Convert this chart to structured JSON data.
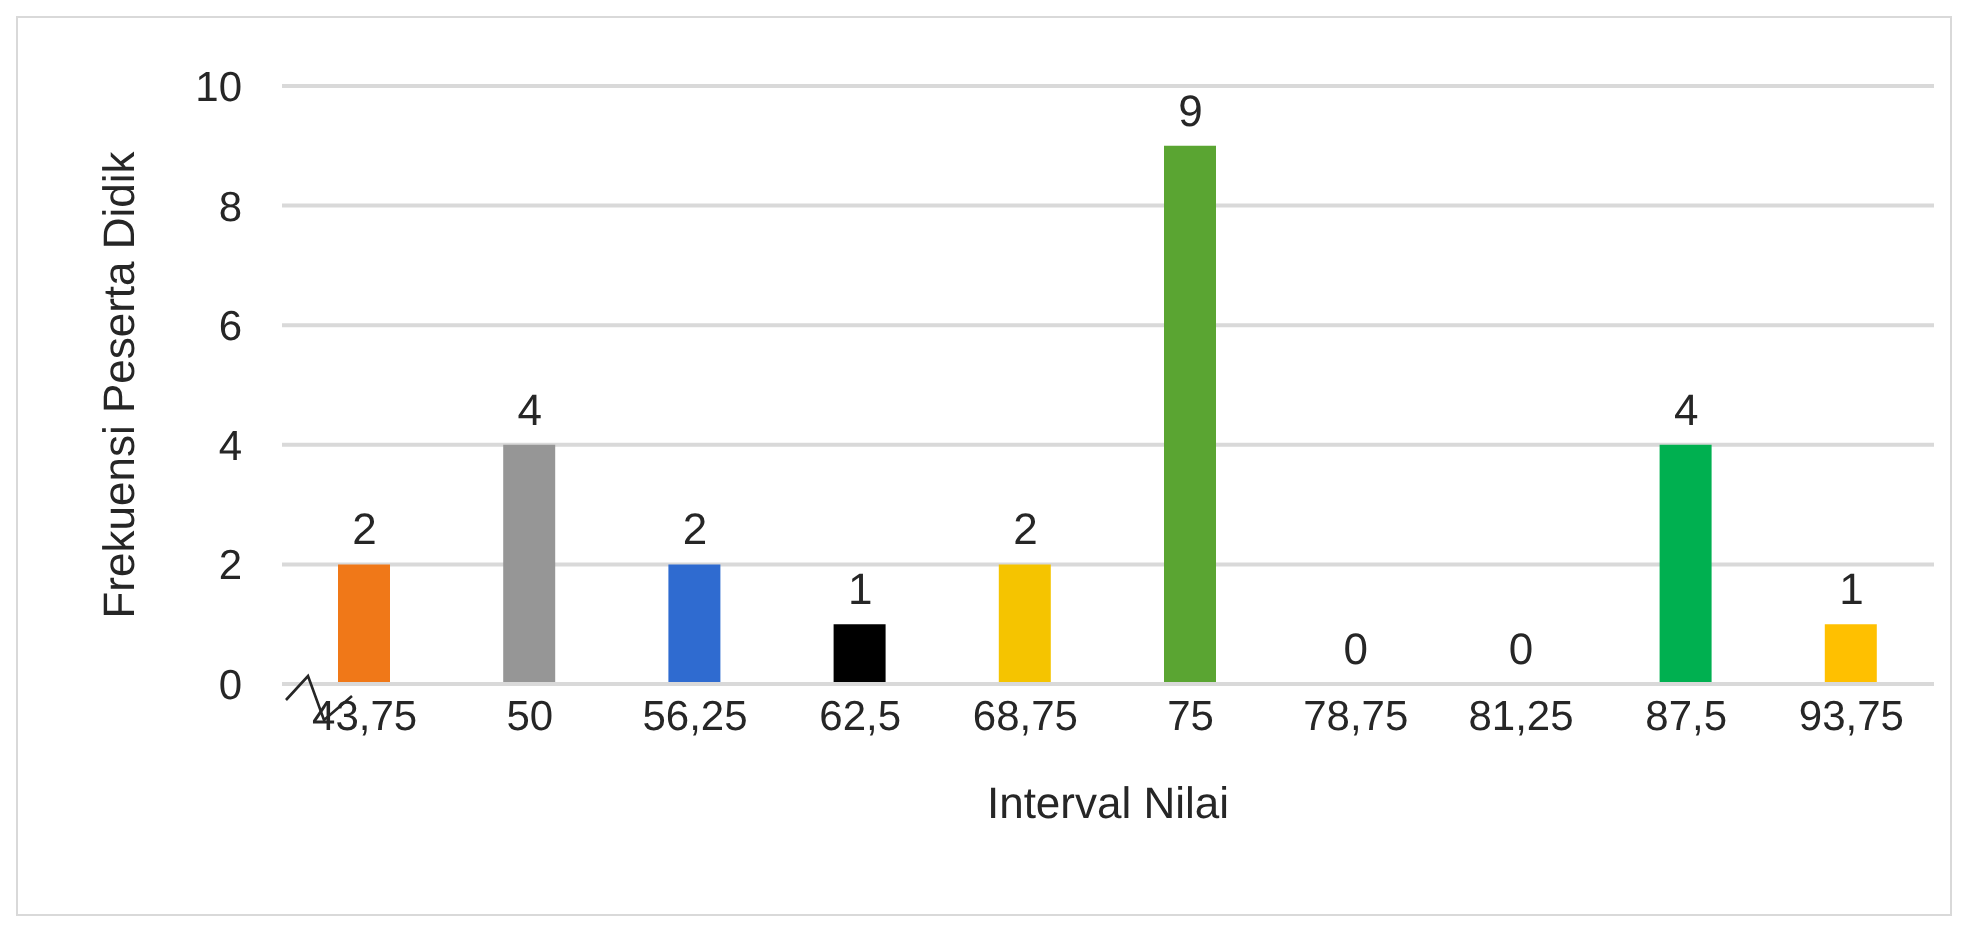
{
  "chart_data": {
    "type": "bar",
    "xlabel": "Interval Nilai",
    "ylabel": "Frekuensi Peserta Didik",
    "categories": [
      "43,75",
      "50",
      "56,25",
      "62,5",
      "68,75",
      "75",
      "78,75",
      "81,25",
      "87,5",
      "93,75"
    ],
    "values": [
      2,
      4,
      2,
      1,
      2,
      9,
      0,
      0,
      4,
      1
    ],
    "colors": [
      "#f07818",
      "#969696",
      "#2f6bd0",
      "#000000",
      "#f5c400",
      "#5aa532",
      "#5aa532",
      "#00b050",
      "#00b050",
      "#ffc000"
    ],
    "ylim": [
      0,
      10
    ],
    "yticks": [
      0,
      2,
      4,
      6,
      8,
      10
    ],
    "grid": "y",
    "data_labels": true
  }
}
